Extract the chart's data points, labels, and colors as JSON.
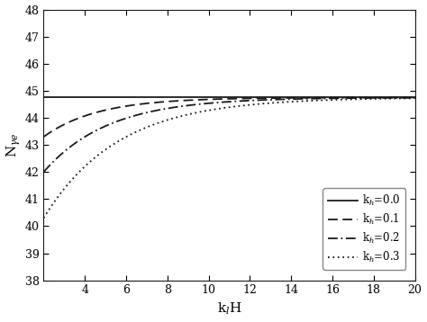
{
  "xlim": [
    2,
    20
  ],
  "ylim": [
    38,
    48
  ],
  "xticks": [
    4,
    6,
    8,
    10,
    12,
    14,
    16,
    18,
    20
  ],
  "yticks": [
    38,
    39,
    40,
    41,
    42,
    43,
    44,
    45,
    46,
    47,
    48
  ],
  "xlabel": "k$_l$H",
  "ylabel": "N$_{\\gamma e}$",
  "asymptote": 44.75,
  "curves": [
    {
      "kh": 0.0,
      "label": "k$_h$=0.0",
      "linestyle": "solid",
      "color": "#1a1a1a",
      "lw": 1.3
    },
    {
      "kh": 0.1,
      "label": "k$_h$=0.1",
      "linestyle": "dashed",
      "color": "#1a1a1a",
      "lw": 1.3
    },
    {
      "kh": 0.2,
      "label": "k$_h$=0.2",
      "linestyle": "dashdot",
      "color": "#1a1a1a",
      "lw": 1.3
    },
    {
      "kh": 0.3,
      "label": "k$_h$=0.3",
      "linestyle": "dotted",
      "color": "#1a1a1a",
      "lw": 1.3
    }
  ],
  "deficit_map": {
    "0.1": 1.45,
    "0.2": 2.75,
    "0.3": 4.45
  },
  "rate_map": {
    "0.1": 0.38,
    "0.2": 0.32,
    "0.3": 0.28
  },
  "background_color": "#ffffff",
  "tick_labelsize": 9,
  "xlabel_fontsize": 11,
  "ylabel_fontsize": 11,
  "legend_fontsize": 8.5
}
